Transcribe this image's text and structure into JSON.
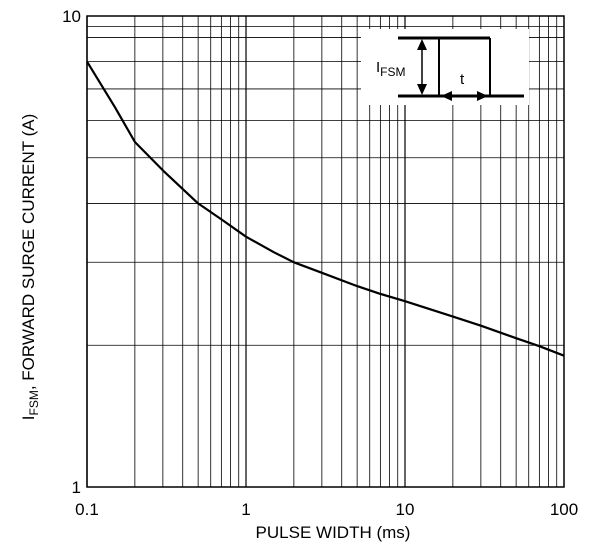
{
  "chart_data": {
    "type": "line",
    "x_scale": "log",
    "y_scale": "log",
    "xlim": [
      0.1,
      100
    ],
    "ylim": [
      1,
      10
    ],
    "xlabel": "PULSE WIDTH (ms)",
    "ylabel_main": "I",
    "ylabel_sub": "FSM",
    "ylabel_rest": ", FORWARD SURGE CURRENT (A)",
    "x_ticks": [
      {
        "value": 0.1,
        "label": "0.1"
      },
      {
        "value": 1,
        "label": "1"
      },
      {
        "value": 10,
        "label": "10"
      },
      {
        "value": 100,
        "label": "100"
      }
    ],
    "y_ticks": [
      {
        "value": 1,
        "label": "1"
      },
      {
        "value": 10,
        "label": "10"
      }
    ],
    "grid": true,
    "series": [
      {
        "x": [
          0.1,
          0.15,
          0.2,
          0.3,
          0.5,
          0.7,
          1,
          1.5,
          2,
          3,
          5,
          7,
          10,
          20,
          30,
          50,
          70,
          100
        ],
        "y": [
          8.0,
          6.4,
          5.4,
          4.7,
          4.0,
          3.7,
          3.4,
          3.15,
          3.0,
          2.85,
          2.67,
          2.57,
          2.48,
          2.3,
          2.2,
          2.07,
          1.99,
          1.9
        ]
      }
    ],
    "inset": {
      "label_main": "I",
      "label_sub": "FSM",
      "time_label": "t"
    }
  }
}
